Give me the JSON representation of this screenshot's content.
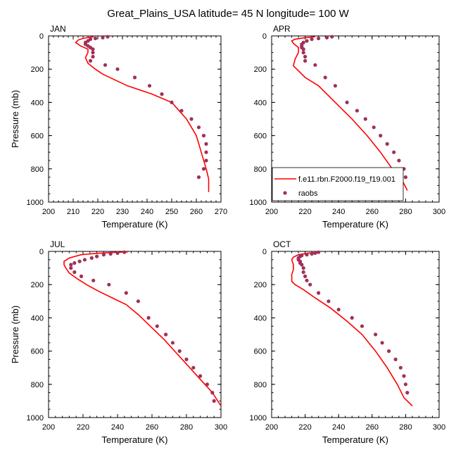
{
  "title": "Great_Plains_USA  latitude= 45 N longitude= 100 W",
  "colors": {
    "model": "#ff0000",
    "obs": "#a0305a",
    "axes": "#000000"
  },
  "legend": {
    "panel": "APR",
    "placement": "lower-right",
    "model_label": "f.e11.rbn.F2000.f19_f19.001",
    "obs_label": "raobs"
  },
  "chart_data": [
    {
      "type": "line+scatter",
      "panel_label": "JAN",
      "xlabel": "Temperature (K)",
      "ylabel": "Pressure (mb)",
      "xlim": [
        200,
        270
      ],
      "ylim": [
        1000,
        0
      ],
      "x_ticks": [
        200,
        210,
        220,
        230,
        240,
        250,
        260,
        270
      ],
      "y_ticks": [
        0,
        200,
        400,
        600,
        800,
        1000
      ],
      "model": {
        "name": "f.e11.rbn.F2000.f19_f19.001",
        "temperature": [
          218,
          214,
          212,
          211,
          213,
          216,
          216,
          215,
          216,
          219,
          222,
          232,
          242,
          250,
          256,
          260,
          262,
          264,
          265,
          265,
          265
        ],
        "pressure": [
          5,
          15,
          25,
          40,
          60,
          80,
          100,
          130,
          165,
          200,
          230,
          300,
          350,
          400,
          500,
          600,
          700,
          800,
          860,
          900,
          940
        ]
      },
      "obs": {
        "name": "raobs",
        "temperature": [
          224,
          222,
          219,
          217,
          216,
          215,
          215,
          216,
          217,
          218,
          218,
          218,
          217,
          223,
          228,
          235,
          241,
          246,
          250,
          254,
          258,
          261,
          263,
          264,
          264,
          264,
          263,
          261
        ],
        "pressure": [
          5,
          10,
          15,
          20,
          30,
          40,
          50,
          60,
          70,
          80,
          100,
          125,
          150,
          175,
          200,
          250,
          300,
          350,
          400,
          450,
          500,
          550,
          600,
          650,
          700,
          750,
          800,
          850
        ]
      }
    },
    {
      "type": "line+scatter",
      "panel_label": "APR",
      "xlabel": "Temperature (K)",
      "ylabel": "",
      "xlim": [
        200,
        300
      ],
      "ylim": [
        1000,
        0
      ],
      "x_ticks": [
        200,
        220,
        240,
        260,
        280,
        300
      ],
      "y_ticks": [
        0,
        200,
        400,
        600,
        800,
        1000
      ],
      "model": {
        "name": "f.e11.rbn.F2000.f19_f19.001",
        "temperature": [
          226,
          219,
          214,
          212,
          213,
          216,
          216,
          214,
          213,
          215,
          220,
          228,
          238,
          248,
          257,
          265,
          272,
          277,
          281
        ],
        "pressure": [
          5,
          12,
          20,
          30,
          45,
          70,
          100,
          140,
          180,
          200,
          250,
          300,
          400,
          500,
          600,
          700,
          800,
          850,
          930
        ]
      },
      "obs": {
        "name": "raobs",
        "temperature": [
          236,
          233,
          228,
          224,
          221,
          219,
          218,
          218,
          218,
          219,
          219,
          220,
          220,
          226,
          232,
          238,
          245,
          251,
          256,
          261,
          265,
          269,
          273,
          276,
          279,
          280
        ],
        "pressure": [
          5,
          10,
          15,
          20,
          30,
          40,
          50,
          60,
          70,
          80,
          100,
          125,
          150,
          175,
          250,
          300,
          400,
          450,
          500,
          550,
          600,
          650,
          700,
          750,
          800,
          850
        ]
      }
    },
    {
      "type": "line+scatter",
      "panel_label": "JUL",
      "xlabel": "Temperature (K)",
      "ylabel": "Pressure (mb)",
      "xlim": [
        200,
        300
      ],
      "ylim": [
        1000,
        0
      ],
      "x_ticks": [
        200,
        220,
        240,
        260,
        280,
        300
      ],
      "y_ticks": [
        0,
        200,
        400,
        600,
        800,
        1000
      ],
      "model": {
        "name": "f.e11.rbn.F2000.f19_f19.001",
        "temperature": [
          246,
          236,
          228,
          219,
          212,
          209,
          209,
          210,
          212,
          216,
          222,
          229,
          237,
          245,
          252,
          259,
          267,
          274,
          281,
          288,
          295,
          300
        ],
        "pressure": [
          3,
          7,
          12,
          20,
          40,
          60,
          80,
          100,
          130,
          160,
          200,
          240,
          280,
          320,
          380,
          450,
          530,
          610,
          690,
          770,
          850,
          930
        ]
      },
      "obs": {
        "name": "raobs",
        "temperature": [
          244,
          240,
          236,
          232,
          228,
          225,
          221,
          218,
          215,
          213,
          213,
          215,
          219,
          226,
          235,
          245,
          252,
          258,
          263,
          268,
          272,
          276,
          280,
          284,
          288,
          292,
          295,
          296
        ],
        "pressure": [
          5,
          10,
          15,
          20,
          30,
          40,
          50,
          60,
          70,
          80,
          100,
          125,
          150,
          175,
          200,
          250,
          300,
          400,
          450,
          500,
          550,
          600,
          650,
          700,
          750,
          800,
          850,
          900
        ]
      }
    },
    {
      "type": "line+scatter",
      "panel_label": "OCT",
      "xlabel": "Temperature (K)",
      "ylabel": "",
      "xlim": [
        200,
        300
      ],
      "ylim": [
        1000,
        0
      ],
      "x_ticks": [
        200,
        220,
        240,
        260,
        280,
        300
      ],
      "y_ticks": [
        0,
        200,
        400,
        600,
        800,
        1000
      ],
      "model": {
        "name": "f.e11.rbn.F2000.f19_f19.001",
        "temperature": [
          229,
          222,
          216,
          213,
          212,
          213,
          213,
          212,
          212,
          214,
          219,
          226,
          235,
          245,
          254,
          262,
          269,
          275,
          279,
          284
        ],
        "pressure": [
          5,
          10,
          20,
          35,
          50,
          80,
          110,
          140,
          180,
          200,
          230,
          280,
          340,
          420,
          500,
          600,
          700,
          800,
          880,
          930
        ]
      },
      "obs": {
        "name": "raobs",
        "temperature": [
          228,
          226,
          224,
          221,
          218,
          217,
          216,
          216,
          217,
          217,
          218,
          219,
          219,
          220,
          221,
          223,
          228,
          234,
          240,
          248,
          254,
          262,
          266,
          270,
          274,
          277,
          279,
          280,
          281
        ],
        "pressure": [
          5,
          10,
          15,
          20,
          25,
          30,
          40,
          50,
          60,
          70,
          80,
          100,
          125,
          150,
          175,
          200,
          250,
          300,
          350,
          400,
          450,
          500,
          550,
          600,
          650,
          700,
          750,
          800,
          850
        ]
      }
    }
  ]
}
